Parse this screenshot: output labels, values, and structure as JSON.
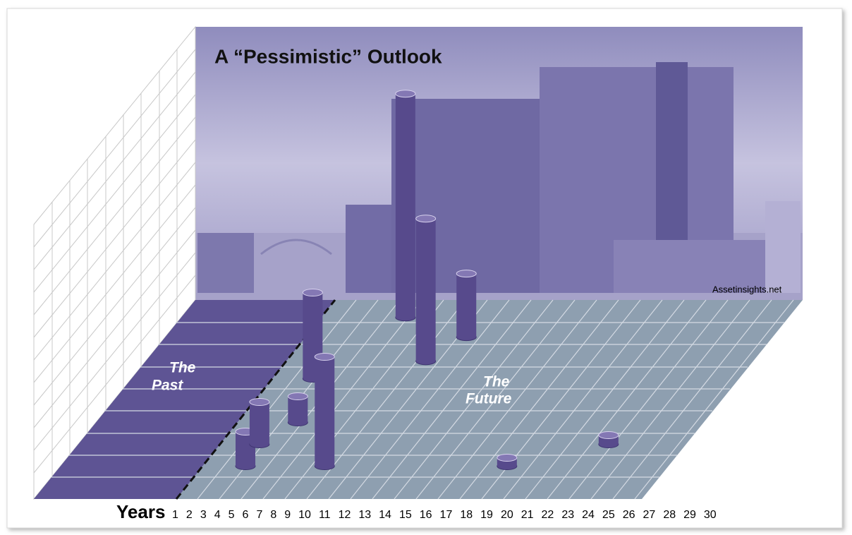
{
  "chart_data": {
    "type": "cylinder",
    "title": "A “Pessimistic” Outlook",
    "past_label": [
      "The",
      "Past"
    ],
    "future_label": [
      "The",
      "Future"
    ],
    "source": "Assetinsights.net",
    "x_label": "Years",
    "xticks": [
      1,
      2,
      3,
      4,
      5,
      6,
      7,
      8,
      9,
      10,
      11,
      12,
      13,
      14,
      15,
      16,
      17,
      18,
      19,
      20,
      21,
      22,
      23,
      24,
      25,
      26,
      27,
      28,
      29,
      30
    ],
    "x": [
      6,
      7,
      9.6,
      10.4,
      11,
      15,
      16,
      18,
      20,
      25
    ],
    "depth": [
      1.5,
      2.5,
      3.5,
      5.5,
      1.5,
      8.3,
      6.3,
      7.4,
      1.5,
      2.5
    ],
    "values": [
      49,
      60,
      37,
      122,
      155,
      317,
      202,
      90,
      12,
      13
    ],
    "ylim": [
      0,
      320
    ],
    "color": "#574a8c"
  }
}
